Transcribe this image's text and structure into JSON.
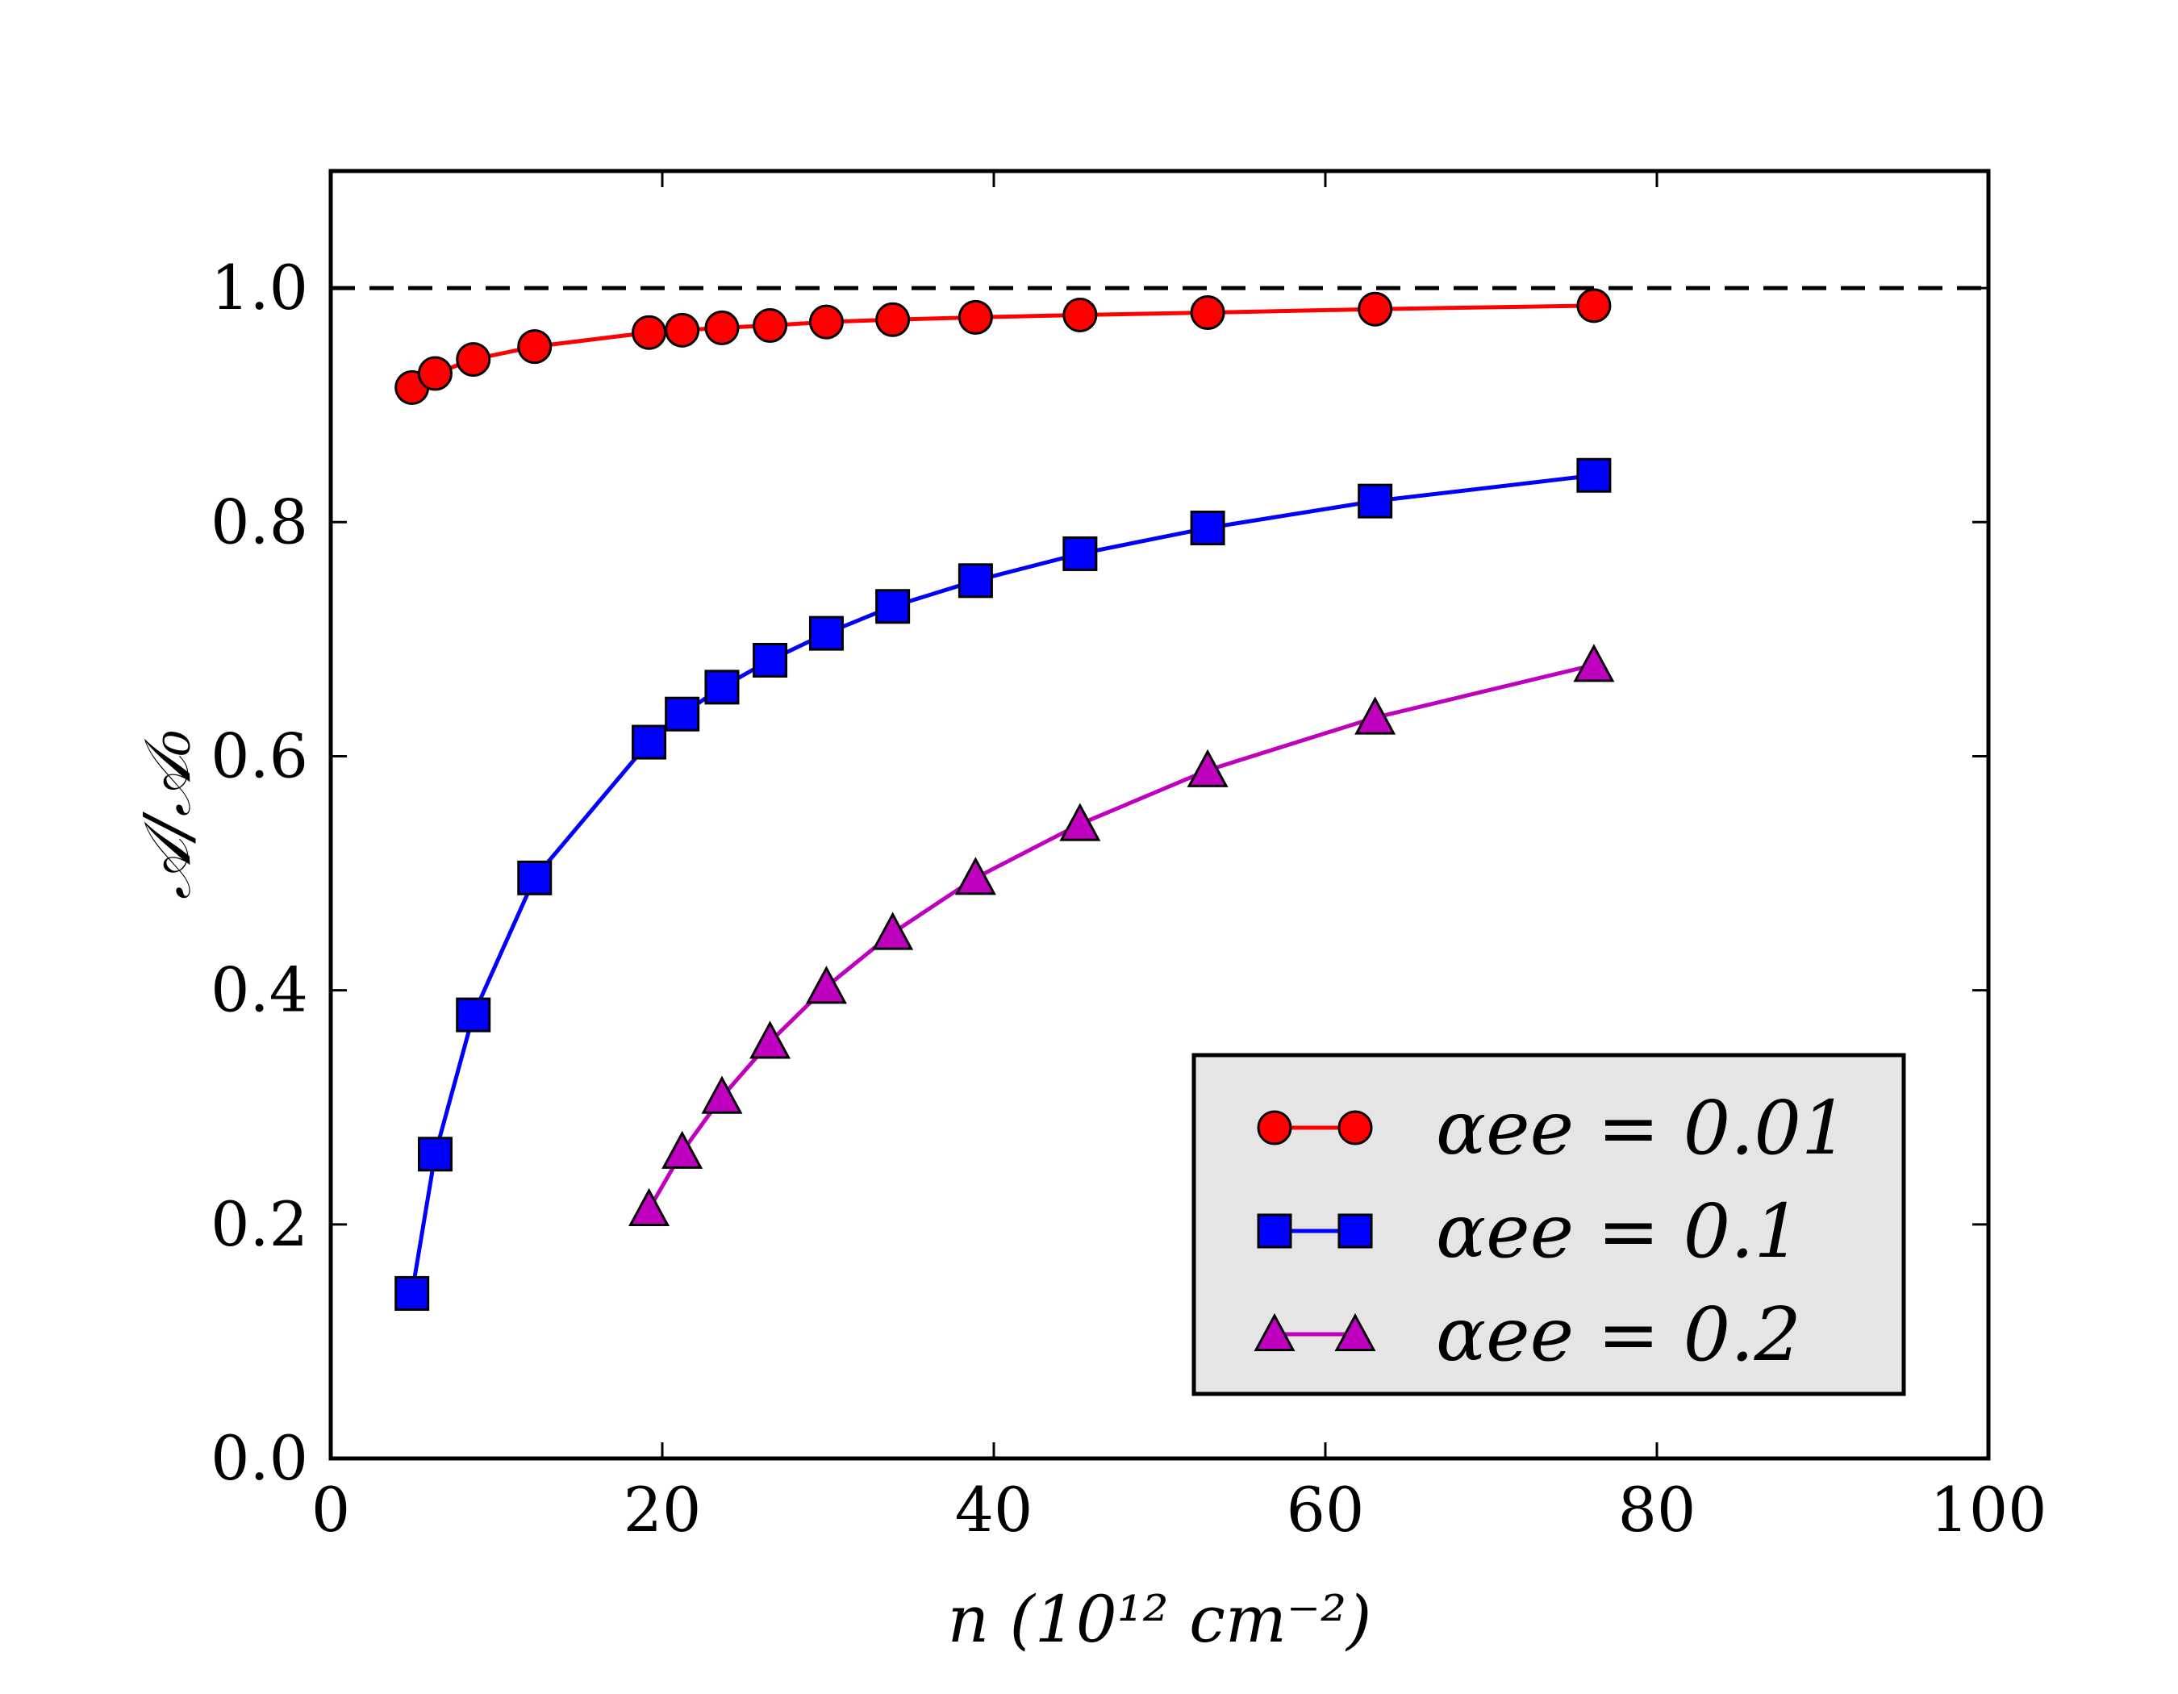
{
  "chart_data": {
    "type": "line",
    "xlabel": "n (10¹² cm⁻²)",
    "ylabel": "𝒜/𝒜₀",
    "xlim": [
      0,
      100
    ],
    "ylim": [
      0.0,
      1.1
    ],
    "x_ticks": [
      "0",
      "20",
      "40",
      "60",
      "80",
      "100"
    ],
    "y_ticks": [
      "0.0",
      "0.2",
      "0.4",
      "0.6",
      "0.8",
      "1.0"
    ],
    "reference_line": {
      "y": 1.0,
      "style": "dashed",
      "color": "#000000"
    },
    "legend_position": "lower-right",
    "series": [
      {
        "name": "αee = 0.01",
        "marker": "circle",
        "color": "#ff0000",
        "x": [
          4.9,
          6.3,
          8.6,
          12.3,
          19.2,
          21.2,
          23.6,
          26.5,
          29.9,
          33.9,
          38.9,
          45.2,
          52.9,
          63.0,
          76.2
        ],
        "y": [
          0.915,
          0.927,
          0.939,
          0.95,
          0.962,
          0.964,
          0.966,
          0.968,
          0.971,
          0.973,
          0.975,
          0.977,
          0.979,
          0.982,
          0.985
        ]
      },
      {
        "name": "αee = 0.1",
        "marker": "square",
        "color": "#0000ff",
        "x": [
          4.9,
          6.3,
          8.6,
          12.3,
          19.2,
          21.2,
          23.6,
          26.5,
          29.9,
          33.9,
          38.9,
          45.2,
          52.9,
          63.0,
          76.2
        ],
        "y": [
          0.141,
          0.26,
          0.379,
          0.496,
          0.612,
          0.636,
          0.659,
          0.682,
          0.705,
          0.728,
          0.75,
          0.773,
          0.795,
          0.818,
          0.84
        ]
      },
      {
        "name": "αee = 0.2",
        "marker": "triangle",
        "color": "#bf00bf",
        "x": [
          19.2,
          21.2,
          23.6,
          26.5,
          29.9,
          33.9,
          38.9,
          45.2,
          52.9,
          63.0,
          76.2
        ],
        "y": [
          0.213,
          0.262,
          0.309,
          0.356,
          0.403,
          0.449,
          0.496,
          0.542,
          0.588,
          0.633,
          0.678
        ]
      }
    ]
  }
}
